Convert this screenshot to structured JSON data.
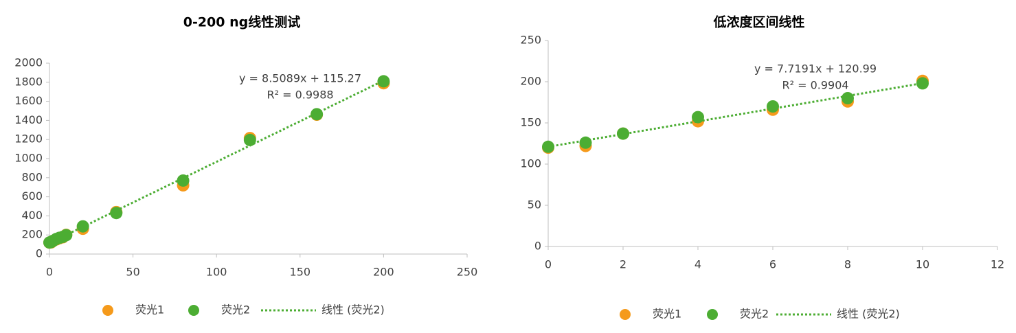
{
  "chart_data": [
    {
      "type": "scatter",
      "title": "0-200 ng线性测试",
      "x": [
        0,
        1,
        2,
        4,
        6,
        8,
        10,
        20,
        40,
        80,
        120,
        160,
        200
      ],
      "series": [
        {
          "name": "荧光1",
          "color": "#f59a1b",
          "values": [
            120,
            122,
            137,
            152,
            166,
            176,
            201,
            265,
            440,
            720,
            1215,
            1460,
            1790
          ]
        },
        {
          "name": "荧光2",
          "color": "#4cad33",
          "values": [
            121,
            126,
            137,
            157,
            170,
            180,
            198,
            290,
            430,
            770,
            1195,
            1465,
            1810
          ]
        }
      ],
      "trendline": {
        "name": "线性 (荧光2)",
        "color": "#4cad33",
        "slope": 8.5089,
        "intercept": 115.27,
        "equation": "y = 8.5089x + 115.27",
        "r2": "R² = 0.9988"
      },
      "xlim": [
        0,
        250
      ],
      "xticks": [
        0,
        50,
        100,
        150,
        200,
        250
      ],
      "ylim": [
        0,
        2000
      ],
      "yticks": [
        0,
        200,
        400,
        600,
        800,
        1000,
        1200,
        1400,
        1600,
        1800,
        2000
      ]
    },
    {
      "type": "scatter",
      "title": "低浓度区间线性",
      "x": [
        0,
        1,
        2,
        4,
        6,
        8,
        10
      ],
      "series": [
        {
          "name": "荧光1",
          "color": "#f59a1b",
          "values": [
            120,
            122,
            137,
            152,
            166,
            176,
            201
          ]
        },
        {
          "name": "荧光2",
          "color": "#4cad33",
          "values": [
            121,
            126,
            137,
            157,
            170,
            180,
            198
          ]
        }
      ],
      "trendline": {
        "name": "线性 (荧光2)",
        "color": "#4cad33",
        "slope": 7.7191,
        "intercept": 120.99,
        "equation": "y = 7.7191x + 120.99",
        "r2": "R² = 0.9904"
      },
      "xlim": [
        0,
        12
      ],
      "xticks": [
        0,
        2,
        4,
        6,
        8,
        10,
        12
      ],
      "ylim": [
        0,
        250
      ],
      "yticks": [
        0,
        50,
        100,
        150,
        200,
        250
      ]
    }
  ]
}
